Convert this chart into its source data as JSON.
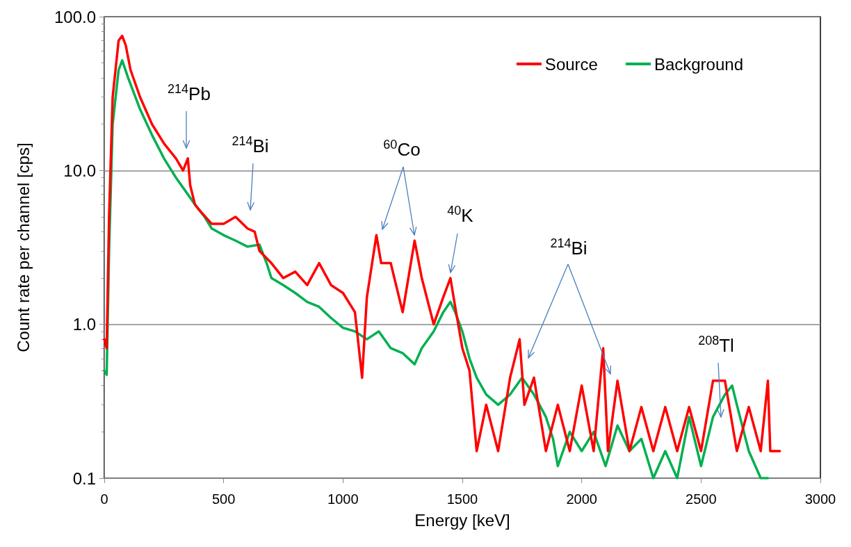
{
  "chart_data": {
    "type": "line",
    "xlabel": "Energy [keV]",
    "ylabel": "Count rate per channel [cps]",
    "log": "y",
    "grid": "y",
    "legend": "top right",
    "marker": "none",
    "line_style": "solid",
    "xlim": [
      0,
      3000
    ],
    "xticks": [
      0,
      500,
      1000,
      1500,
      2000,
      2500,
      3000
    ],
    "ylim": [
      0.1,
      100
    ],
    "yticks": [
      {
        "value": 0.1,
        "label": "0.1"
      },
      {
        "value": 1,
        "label": "1.0"
      },
      {
        "value": 10,
        "label": "10.0"
      },
      {
        "value": 100,
        "label": "100.0"
      }
    ],
    "series": [
      {
        "name": "Source",
        "color": "#ff0000",
        "x": [
          0,
          10,
          20,
          35,
          60,
          75,
          90,
          110,
          150,
          200,
          250,
          300,
          330,
          350,
          360,
          380,
          400,
          450,
          500,
          550,
          600,
          630,
          650,
          700,
          750,
          800,
          850,
          900,
          950,
          1000,
          1050,
          1080,
          1100,
          1140,
          1160,
          1200,
          1250,
          1300,
          1330,
          1380,
          1420,
          1450,
          1470,
          1500,
          1530,
          1560,
          1600,
          1650,
          1700,
          1740,
          1760,
          1800,
          1850,
          1900,
          1950,
          2000,
          2050,
          2090,
          2110,
          2150,
          2200,
          2250,
          2300,
          2350,
          2400,
          2450,
          2500,
          2550,
          2600,
          2650,
          2700,
          2750,
          2780,
          2790,
          2830
        ],
        "values": [
          0.8,
          0.7,
          5,
          30,
          70,
          75,
          65,
          45,
          30,
          20,
          15,
          12,
          10,
          12,
          8,
          6,
          5.5,
          4.5,
          4.5,
          5,
          4.2,
          4,
          3,
          2.5,
          2,
          2.2,
          1.8,
          2.5,
          1.8,
          1.6,
          1.2,
          0.45,
          1.5,
          3.8,
          2.5,
          2.5,
          1.2,
          3.5,
          2,
          1,
          1.5,
          2,
          1.3,
          0.7,
          0.5,
          0.15,
          0.3,
          0.15,
          0.45,
          0.8,
          0.3,
          0.45,
          0.15,
          0.3,
          0.15,
          0.4,
          0.15,
          0.7,
          0.15,
          0.43,
          0.15,
          0.29,
          0.15,
          0.29,
          0.15,
          0.29,
          0.15,
          0.43,
          0.43,
          0.15,
          0.29,
          0.15,
          0.43,
          0.15,
          0.15
        ]
      },
      {
        "name": "Background",
        "color": "#00b050",
        "x": [
          0,
          10,
          20,
          35,
          60,
          75,
          100,
          150,
          200,
          250,
          300,
          350,
          380,
          420,
          450,
          500,
          550,
          600,
          650,
          680,
          700,
          750,
          800,
          850,
          900,
          950,
          1000,
          1050,
          1100,
          1150,
          1200,
          1250,
          1300,
          1330,
          1380,
          1420,
          1450,
          1470,
          1500,
          1530,
          1560,
          1600,
          1650,
          1700,
          1750,
          1800,
          1850,
          1880,
          1900,
          1950,
          2000,
          2050,
          2100,
          2150,
          2200,
          2250,
          2300,
          2350,
          2400,
          2450,
          2500,
          2550,
          2600,
          2630,
          2650,
          2700,
          2750,
          2780
        ],
        "values": [
          0.5,
          0.47,
          3,
          20,
          45,
          52,
          40,
          25,
          17,
          12,
          9,
          7,
          6,
          5,
          4.2,
          3.8,
          3.5,
          3.2,
          3.3,
          2.5,
          2,
          1.8,
          1.6,
          1.4,
          1.3,
          1.1,
          0.95,
          0.9,
          0.8,
          0.9,
          0.7,
          0.65,
          0.55,
          0.7,
          0.9,
          1.2,
          1.4,
          1.2,
          0.9,
          0.6,
          0.45,
          0.35,
          0.3,
          0.35,
          0.45,
          0.35,
          0.25,
          0.18,
          0.12,
          0.2,
          0.15,
          0.2,
          0.12,
          0.22,
          0.15,
          0.18,
          0.1,
          0.15,
          0.1,
          0.25,
          0.12,
          0.25,
          0.35,
          0.4,
          0.3,
          0.15,
          0.1,
          0.1
        ]
      }
    ],
    "annotations": [
      "$^{214}$Pb",
      "$^{214}$Bi",
      "$^{60}$Co",
      "$^{40}$K",
      "$^{214}$Bi",
      "$^{208}$Tl"
    ]
  }
}
